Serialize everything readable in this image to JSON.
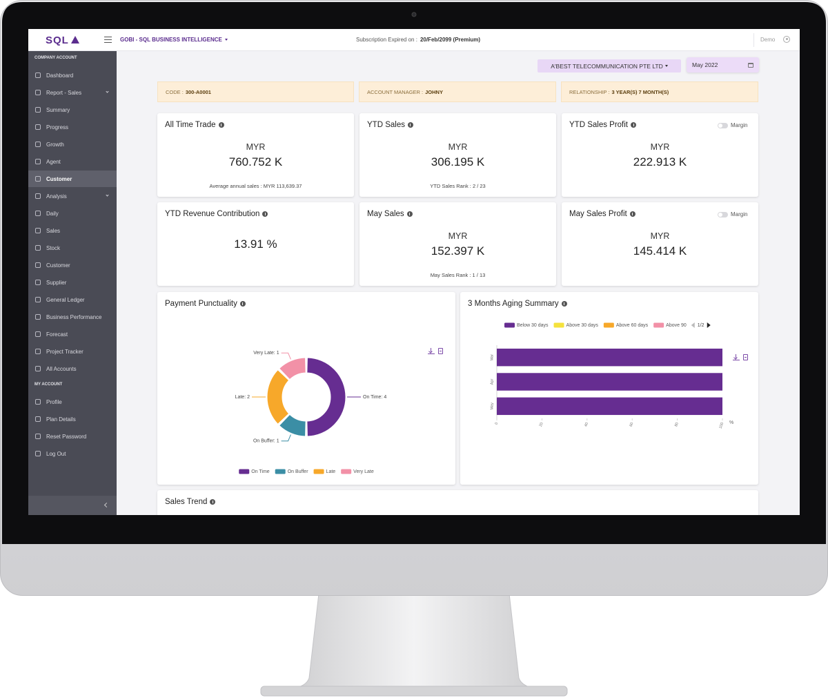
{
  "topbar": {
    "logo": "SQL",
    "app_title": "GOBI - SQL BUSINESS INTELLIGENCE",
    "subscription_label": "Subscription Expired on :",
    "subscription_value": "20/Feb/2099 (Premium)",
    "user": "Demo"
  },
  "sidebar": {
    "sections": [
      {
        "heading": "COMPANY ACCOUNT",
        "items": [
          {
            "label": "Dashboard"
          },
          {
            "label": "Report - Sales",
            "expandable": true
          },
          {
            "label": "Summary"
          },
          {
            "label": "Progress"
          },
          {
            "label": "Growth"
          },
          {
            "label": "Agent"
          },
          {
            "label": "Customer",
            "active": true
          },
          {
            "label": "Analysis",
            "expandable": true
          },
          {
            "label": "Daily"
          },
          {
            "label": "Sales"
          },
          {
            "label": "Stock"
          },
          {
            "label": "Customer"
          },
          {
            "label": "Supplier"
          },
          {
            "label": "General Ledger"
          },
          {
            "label": "Business Performance"
          },
          {
            "label": "Forecast"
          },
          {
            "label": "Project Tracker"
          },
          {
            "label": "All Accounts"
          }
        ]
      },
      {
        "heading": "MY ACCOUNT",
        "items": [
          {
            "label": "Profile"
          },
          {
            "label": "Plan Details"
          },
          {
            "label": "Reset Password"
          },
          {
            "label": "Log Out"
          }
        ]
      }
    ]
  },
  "filters": {
    "company": "A'BEST TELECOMMUNICATION PTE LTD",
    "period": "May 2022"
  },
  "info": [
    {
      "label": "CODE :",
      "value": "300-A0001"
    },
    {
      "label": "ACCOUNT MANAGER :",
      "value": "JOHNY"
    },
    {
      "label": "RELATIONSHIP :",
      "value": "3 YEAR(S) 7 MONTH(S)"
    }
  ],
  "kpis": [
    {
      "title": "All Time Trade",
      "currency": "MYR",
      "value": "760.752 K",
      "note": "Average annual sales : MYR 113,639.37"
    },
    {
      "title": "YTD Sales",
      "currency": "MYR",
      "value": "306.195 K",
      "note": "YTD Sales Rank : 2 / 23"
    },
    {
      "title": "YTD Sales Profit",
      "currency": "MYR",
      "value": "222.913 K",
      "toggle": "Margin"
    },
    {
      "title": "YTD Revenue Contribution",
      "value": "13.91 %"
    },
    {
      "title": "May Sales",
      "currency": "MYR",
      "value": "152.397 K",
      "note": "May Sales Rank : 1 / 13"
    },
    {
      "title": "May Sales Profit",
      "currency": "MYR",
      "value": "145.414 K",
      "toggle": "Margin"
    }
  ],
  "payment_punctuality": {
    "type": "pie",
    "title": "Payment Punctuality",
    "categories": [
      "On Time",
      "On Buffer",
      "Late",
      "Very Late"
    ],
    "values": [
      4,
      1,
      2,
      1
    ],
    "value_labels": [
      "On Time: 4",
      "On Buffer: 1",
      "Late: 2",
      "Very Late: 1"
    ],
    "colors": [
      "#662d91",
      "#3b8ea5",
      "#f7a82a",
      "#f291a7"
    ]
  },
  "aging": {
    "type": "bar",
    "orientation": "horizontal",
    "stacked": true,
    "title": "3 Months Aging Summary",
    "categories": [
      "Mar",
      "Apr",
      "May"
    ],
    "series": [
      {
        "name": "Below 30 days",
        "color": "#662d91",
        "values": [
          100,
          100,
          100
        ]
      },
      {
        "name": "Above 30 days",
        "color": "#f5e23d",
        "values": [
          0,
          0,
          0
        ]
      },
      {
        "name": "Above 60 days",
        "color": "#f7a82a",
        "values": [
          0,
          0,
          0
        ]
      },
      {
        "name": "Above 90",
        "color": "#f291a7",
        "values": [
          0,
          0,
          0
        ]
      }
    ],
    "xlim": [
      0,
      100
    ],
    "xticks": [
      0,
      20,
      40,
      60,
      80,
      100
    ],
    "x_unit": "%",
    "legend_page": "1/2"
  },
  "sales_trend": {
    "title": "Sales Trend"
  }
}
